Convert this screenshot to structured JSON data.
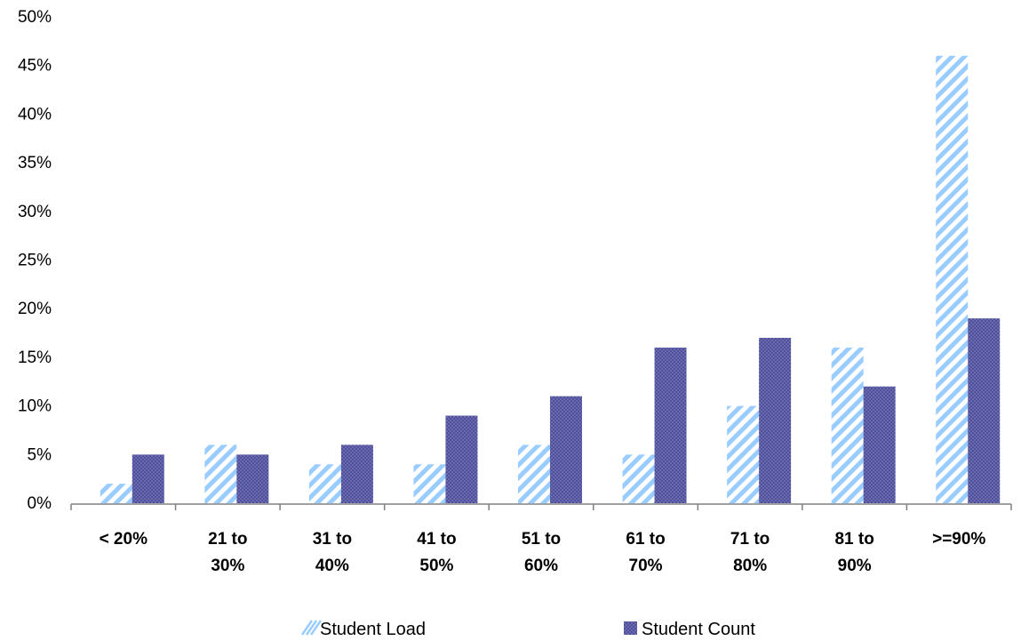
{
  "chart_data": {
    "type": "bar",
    "categories": [
      [
        "< 20%"
      ],
      [
        "21 to",
        "30%"
      ],
      [
        "31 to",
        "40%"
      ],
      [
        "41 to",
        "50%"
      ],
      [
        "51 to",
        "60%"
      ],
      [
        "61 to",
        "70%"
      ],
      [
        "71 to",
        "80%"
      ],
      [
        "81 to",
        "90%"
      ],
      [
        ">=90%"
      ]
    ],
    "series": [
      {
        "name": "Student Load",
        "values": [
          2,
          6,
          4,
          4,
          6,
          5,
          10,
          16,
          46
        ],
        "color": "#99ccff",
        "pattern": "diagonal-stripes"
      },
      {
        "name": "Student Count",
        "values": [
          5,
          5,
          6,
          9,
          11,
          16,
          17,
          12,
          19
        ],
        "color": "#6666aa",
        "pattern": "fine-checker"
      }
    ],
    "ylim": [
      0,
      50
    ],
    "y_ticks": [
      0,
      5,
      10,
      15,
      20,
      25,
      30,
      35,
      40,
      45,
      50
    ],
    "y_tick_format": "percent",
    "xlabel": "",
    "ylabel": "",
    "grid": false,
    "legend": "bottom"
  }
}
